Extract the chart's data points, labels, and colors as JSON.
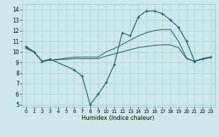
{
  "xlabel": "Humidex (Indice chaleur)",
  "x_ticks": [
    0,
    1,
    2,
    3,
    4,
    5,
    6,
    7,
    8,
    9,
    10,
    11,
    12,
    13,
    14,
    15,
    16,
    17,
    18,
    19,
    20,
    21,
    22,
    23
  ],
  "ylim": [
    4.8,
    14.5
  ],
  "xlim": [
    -0.5,
    23.5
  ],
  "yticks": [
    5,
    6,
    7,
    8,
    9,
    10,
    11,
    12,
    13,
    14
  ],
  "bg_color": "#cce8e8",
  "grid_color": "#aacccc",
  "line_color": "#1a6666",
  "line1_x": [
    0,
    1,
    2,
    3,
    6,
    7,
    8,
    9,
    10,
    11,
    12,
    13,
    14,
    15,
    16,
    17,
    18,
    19,
    20,
    21,
    22,
    23
  ],
  "line1_y": [
    10.5,
    10.0,
    9.1,
    9.3,
    8.3,
    7.7,
    5.0,
    6.0,
    7.1,
    8.8,
    11.8,
    11.5,
    13.3,
    13.85,
    13.85,
    13.6,
    13.0,
    12.3,
    11.0,
    9.1,
    9.35,
    9.5
  ],
  "line2_x": [
    0,
    1,
    2,
    3,
    4,
    5,
    6,
    7,
    8,
    9,
    10,
    11,
    12,
    13,
    14,
    15,
    16,
    17,
    18,
    19,
    20,
    21,
    22,
    23
  ],
  "line2_y": [
    10.4,
    10.0,
    9.1,
    9.2,
    9.3,
    9.4,
    9.5,
    9.5,
    9.5,
    9.5,
    10.0,
    10.3,
    10.7,
    11.1,
    11.5,
    11.8,
    12.0,
    12.1,
    12.1,
    11.0,
    9.4,
    9.1,
    9.35,
    9.5
  ],
  "line3_x": [
    0,
    1,
    2,
    3,
    4,
    5,
    6,
    7,
    8,
    9,
    10,
    11,
    12,
    13,
    14,
    15,
    16,
    17,
    18,
    19,
    20,
    21,
    22,
    23
  ],
  "line3_y": [
    10.3,
    10.0,
    9.1,
    9.2,
    9.25,
    9.3,
    9.35,
    9.35,
    9.35,
    9.35,
    9.6,
    9.8,
    10.0,
    10.2,
    10.4,
    10.5,
    10.6,
    10.65,
    10.65,
    10.4,
    9.35,
    9.1,
    9.3,
    9.45
  ]
}
